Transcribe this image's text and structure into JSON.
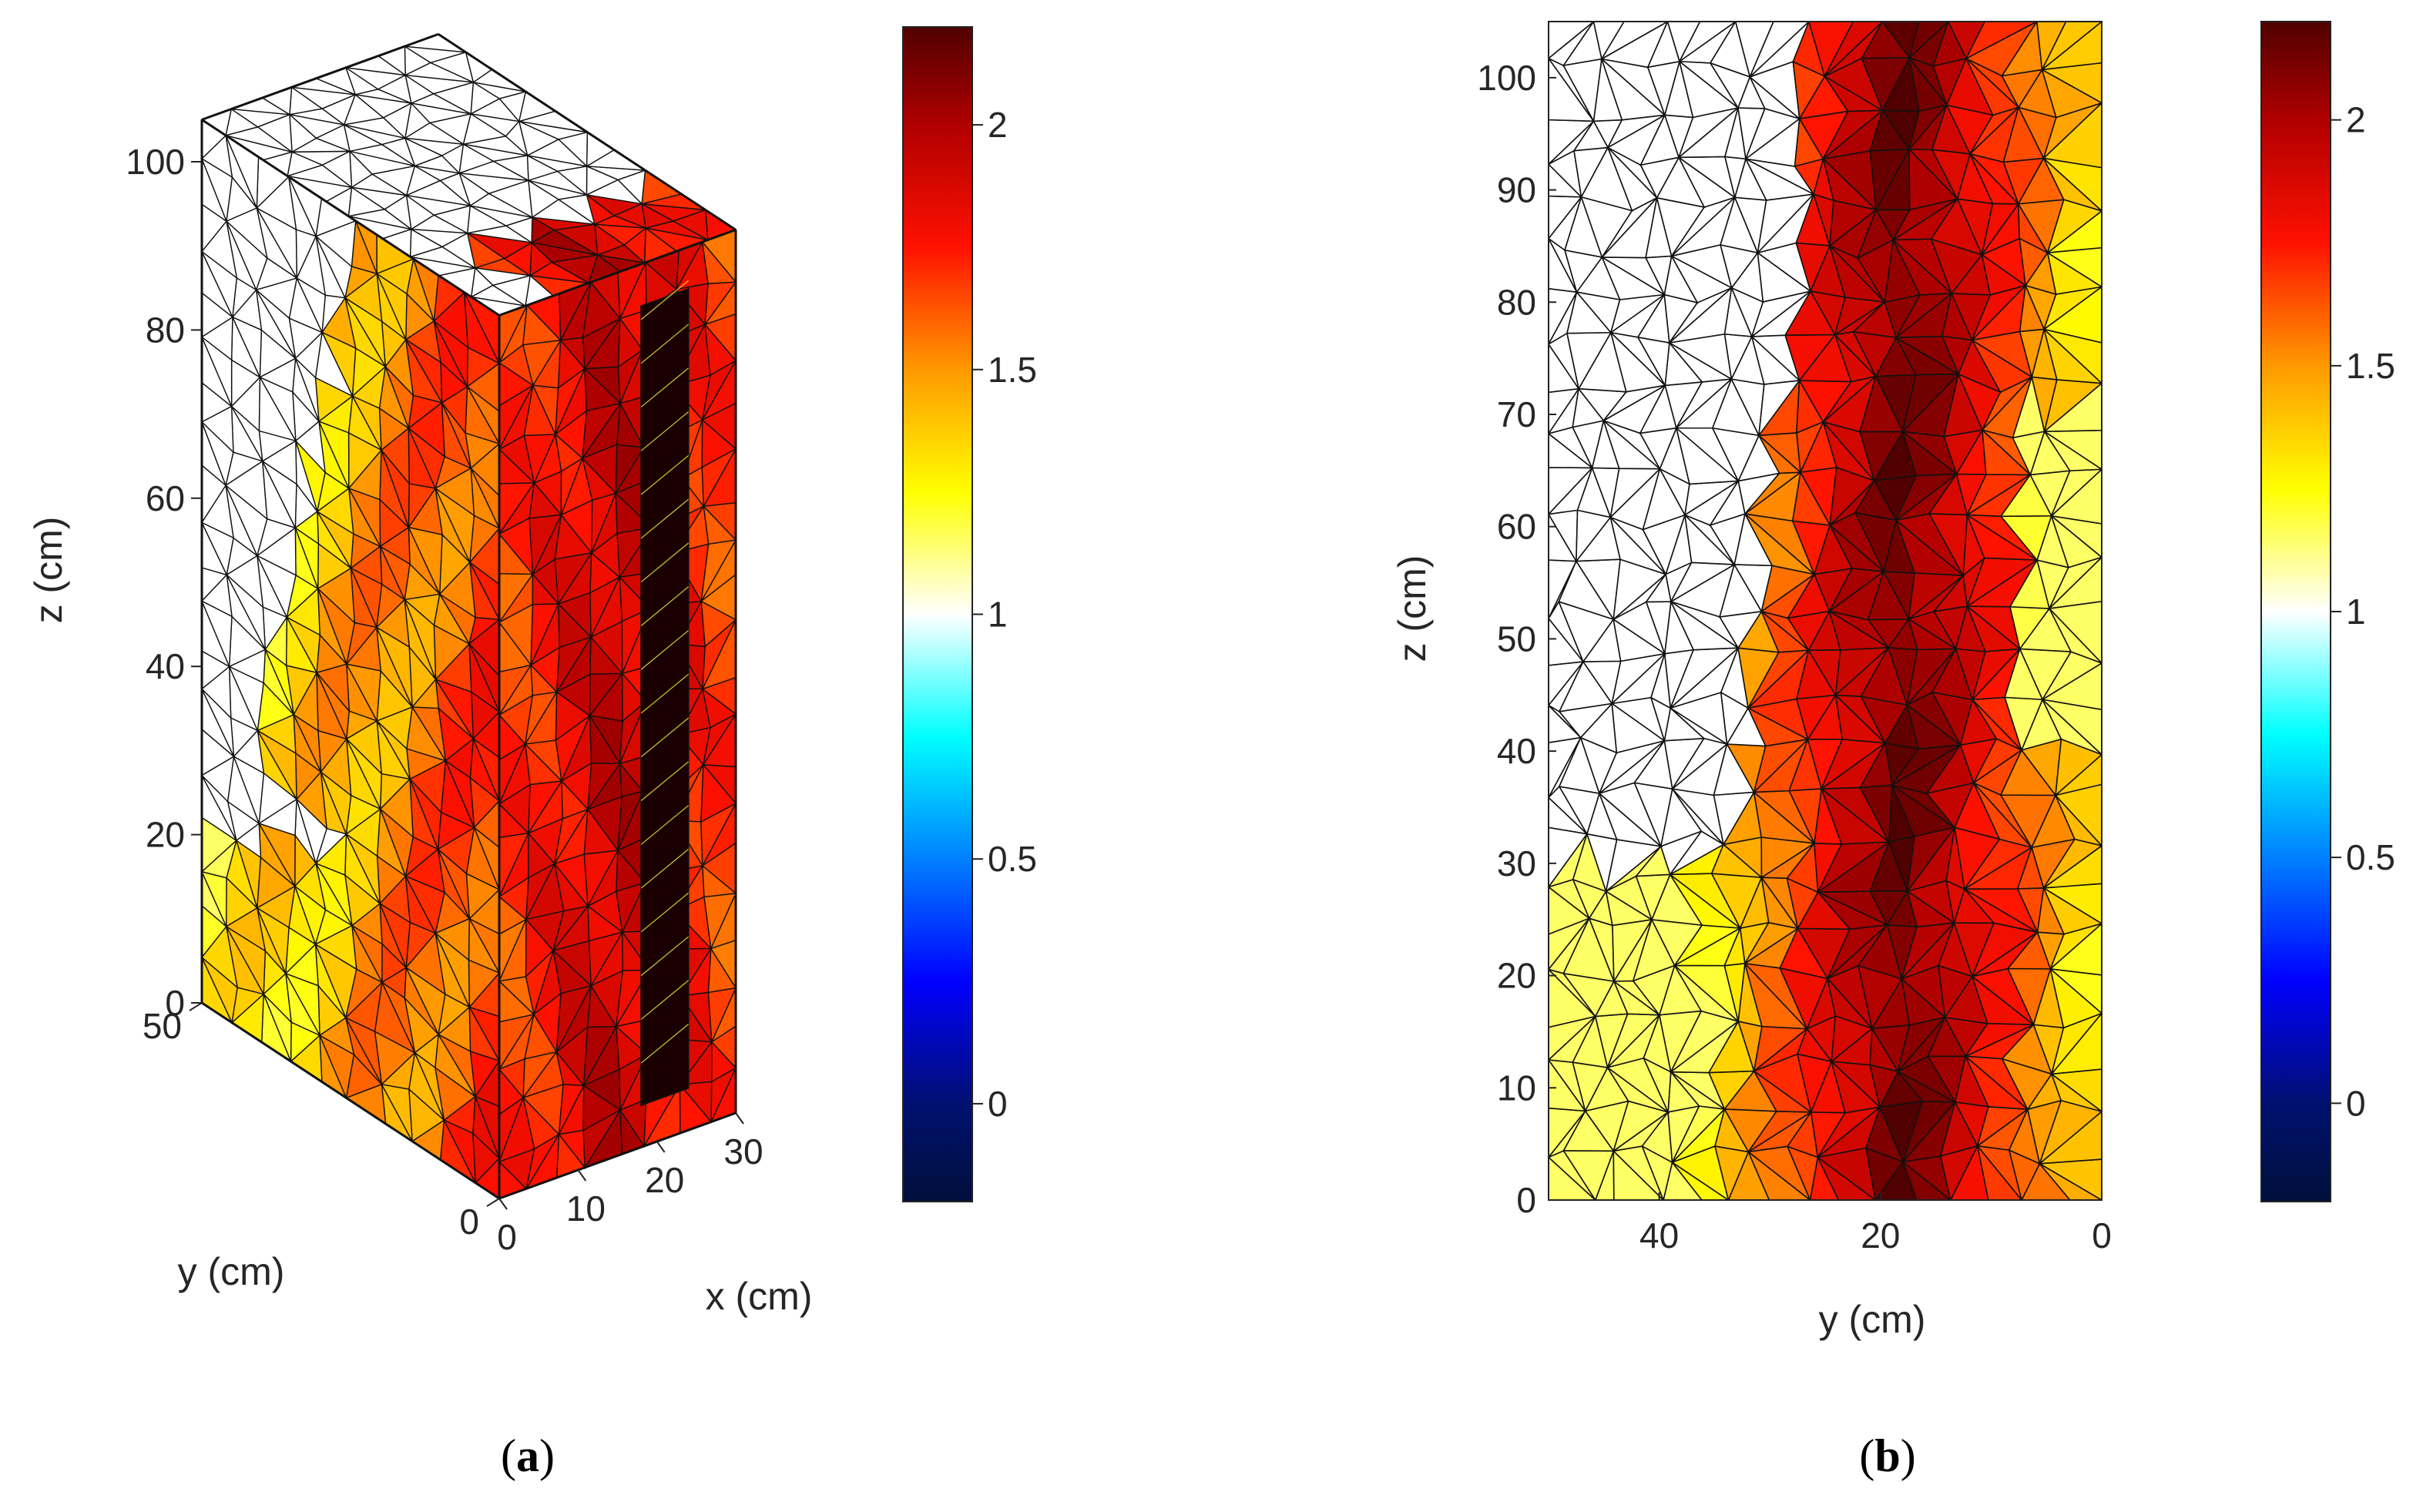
{
  "figure": {
    "captions": [
      {
        "open": "(",
        "letter": "a",
        "close": ")"
      },
      {
        "open": "(",
        "letter": "b",
        "close": ")"
      }
    ]
  },
  "colormap": {
    "name": "custom-jet-hot",
    "stops": [
      {
        "v": -0.2,
        "color": "#00103a"
      },
      {
        "v": 0.0,
        "color": "#001070"
      },
      {
        "v": 0.25,
        "color": "#0000ff"
      },
      {
        "v": 0.5,
        "color": "#0080ff"
      },
      {
        "v": 0.75,
        "color": "#00ffff"
      },
      {
        "v": 1.0,
        "color": "#ffffff"
      },
      {
        "v": 1.25,
        "color": "#ffff00"
      },
      {
        "v": 1.5,
        "color": "#ff9900"
      },
      {
        "v": 1.75,
        "color": "#ff1100"
      },
      {
        "v": 2.0,
        "color": "#b00000"
      },
      {
        "v": 2.2,
        "color": "#500000"
      }
    ]
  },
  "chart_data": [
    {
      "type": "heatmap",
      "subtype": "3d-tetrahedral-mesh",
      "panel": "a",
      "xlabel": "x (cm)",
      "ylabel": "y (cm)",
      "zlabel": "z (cm)",
      "x_ticks": [
        "0",
        "10",
        "20",
        "30"
      ],
      "y_ticks": [
        "0",
        "50"
      ],
      "z_ticks": [
        "0",
        "20",
        "40",
        "60",
        "80",
        "100"
      ],
      "xlim": [
        0,
        30
      ],
      "ylim": [
        0,
        50
      ],
      "zlim": [
        0,
        105
      ],
      "colorbar": {
        "ticks": [
          "0",
          "0.5",
          "1",
          "1.5",
          "2"
        ],
        "range": [
          -0.2,
          2.2
        ]
      },
      "value_range": [
        1.1,
        2.2
      ],
      "notes": "Upper-left back region near y=50 shows unfilled mesh (values near 1); column of dark elements near x=15."
    },
    {
      "type": "heatmap",
      "subtype": "2d-triangular-mesh",
      "panel": "b",
      "xlabel": "y (cm)",
      "ylabel": "z (cm)",
      "x_ticks": [
        "40",
        "20",
        "0"
      ],
      "y_ticks": [
        "0",
        "10",
        "20",
        "30",
        "40",
        "50",
        "60",
        "70",
        "80",
        "90",
        "100"
      ],
      "xlim": [
        50,
        0
      ],
      "ylim": [
        0,
        105
      ],
      "colorbar": {
        "ticks": [
          "0",
          "0.5",
          "1",
          "1.5",
          "2"
        ],
        "range": [
          -0.2,
          2.2
        ]
      },
      "value_range": [
        1.1,
        2.2
      ],
      "notes": "White (unfilled) region in upper-left (large y, z above ~30); highest values near y=10-25."
    }
  ]
}
